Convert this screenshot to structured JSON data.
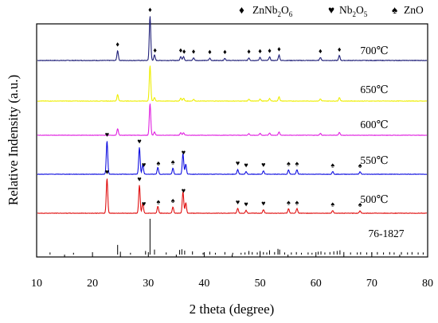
{
  "chart_data": {
    "type": "line",
    "xlabel": "2 theta (degree)",
    "ylabel": "Relative Indensity (a.u.)",
    "xlim": [
      10,
      80
    ],
    "x_ticks": [
      "10",
      "20",
      "30",
      "40",
      "50",
      "60",
      "70",
      "80"
    ],
    "grid": false,
    "legend_position": "top-right",
    "legend": [
      {
        "symbol": "♦",
        "label": "ZnNb2O6",
        "label_main": "ZnNb",
        "sub1": "2",
        "mid": "O",
        "sub2": "6"
      },
      {
        "symbol": "♥",
        "label": "Nb2O5",
        "label_main": "Nb",
        "sub1": "2",
        "mid": "O",
        "sub2": "5"
      },
      {
        "symbol": "♠",
        "label": "ZnO",
        "label_main": "ZnO",
        "sub1": "",
        "mid": "",
        "sub2": ""
      }
    ],
    "series": [
      {
        "name": "700℃",
        "color": "#1f1f78",
        "level": 0.4,
        "peaks": [
          {
            "x": 24.5,
            "h": 0.22
          },
          {
            "x": 30.3,
            "h": 1.0
          },
          {
            "x": 31.1,
            "h": 0.12
          },
          {
            "x": 35.8,
            "h": 0.09
          },
          {
            "x": 36.3,
            "h": 0.09
          },
          {
            "x": 38.1,
            "h": 0.06
          },
          {
            "x": 41.0,
            "h": 0.05
          },
          {
            "x": 43.7,
            "h": 0.05
          },
          {
            "x": 48.0,
            "h": 0.06
          },
          {
            "x": 50.0,
            "h": 0.07
          },
          {
            "x": 51.7,
            "h": 0.08
          },
          {
            "x": 53.4,
            "h": 0.12
          },
          {
            "x": 60.8,
            "h": 0.07
          },
          {
            "x": 64.2,
            "h": 0.11
          }
        ],
        "markers": [
          {
            "x": 24.5,
            "s": "♦"
          },
          {
            "x": 30.3,
            "s": "♦"
          },
          {
            "x": 31.2,
            "s": "♦"
          },
          {
            "x": 35.8,
            "s": "♦"
          },
          {
            "x": 36.4,
            "s": "♦"
          },
          {
            "x": 38.1,
            "s": "♦"
          },
          {
            "x": 41.0,
            "s": "♦"
          },
          {
            "x": 43.7,
            "s": "♦"
          },
          {
            "x": 48.0,
            "s": "♦"
          },
          {
            "x": 50.0,
            "s": "♦"
          },
          {
            "x": 51.7,
            "s": "♦"
          },
          {
            "x": 53.4,
            "s": "♦"
          },
          {
            "x": 60.8,
            "s": "♦"
          },
          {
            "x": 64.2,
            "s": "♦"
          }
        ]
      },
      {
        "name": "650℃",
        "color": "#eeee00",
        "level": 0.35,
        "peaks": [
          {
            "x": 24.5,
            "h": 0.18
          },
          {
            "x": 30.3,
            "h": 1.0
          },
          {
            "x": 31.1,
            "h": 0.1
          },
          {
            "x": 35.8,
            "h": 0.08
          },
          {
            "x": 36.3,
            "h": 0.08
          },
          {
            "x": 38.1,
            "h": 0.05
          },
          {
            "x": 48.0,
            "h": 0.05
          },
          {
            "x": 50.0,
            "h": 0.06
          },
          {
            "x": 51.7,
            "h": 0.07
          },
          {
            "x": 53.4,
            "h": 0.12
          },
          {
            "x": 60.8,
            "h": 0.06
          },
          {
            "x": 64.2,
            "h": 0.1
          }
        ],
        "markers": []
      },
      {
        "name": "600℃",
        "color": "#e020e0",
        "level": 0.35,
        "peaks": [
          {
            "x": 24.5,
            "h": 0.2
          },
          {
            "x": 30.3,
            "h": 1.0
          },
          {
            "x": 31.1,
            "h": 0.1
          },
          {
            "x": 35.8,
            "h": 0.08
          },
          {
            "x": 36.3,
            "h": 0.08
          },
          {
            "x": 48.0,
            "h": 0.05
          },
          {
            "x": 50.0,
            "h": 0.06
          },
          {
            "x": 51.7,
            "h": 0.07
          },
          {
            "x": 53.4,
            "h": 0.1
          },
          {
            "x": 60.8,
            "h": 0.06
          },
          {
            "x": 64.2,
            "h": 0.09
          }
        ],
        "markers": []
      },
      {
        "name": "550℃",
        "color": "#1010e0",
        "level": 0.37,
        "peaks": [
          {
            "x": 22.6,
            "h": 1.0
          },
          {
            "x": 28.4,
            "h": 0.8
          },
          {
            "x": 29.0,
            "h": 0.3
          },
          {
            "x": 31.7,
            "h": 0.2
          },
          {
            "x": 34.4,
            "h": 0.18
          },
          {
            "x": 36.2,
            "h": 0.62
          },
          {
            "x": 36.7,
            "h": 0.3
          },
          {
            "x": 46.0,
            "h": 0.14
          },
          {
            "x": 47.5,
            "h": 0.08
          },
          {
            "x": 50.6,
            "h": 0.1
          },
          {
            "x": 55.1,
            "h": 0.13
          },
          {
            "x": 56.6,
            "h": 0.13
          },
          {
            "x": 63.0,
            "h": 0.08
          },
          {
            "x": 67.9,
            "h": 0.07
          }
        ],
        "markers": [
          {
            "x": 22.6,
            "s": "♥"
          },
          {
            "x": 28.4,
            "s": "♥"
          },
          {
            "x": 29.2,
            "s": "♥"
          },
          {
            "x": 31.8,
            "s": "♠"
          },
          {
            "x": 34.4,
            "s": "♠"
          },
          {
            "x": 36.3,
            "s": "♥"
          },
          {
            "x": 46.0,
            "s": "♥"
          },
          {
            "x": 47.5,
            "s": "♥"
          },
          {
            "x": 50.6,
            "s": "♥"
          },
          {
            "x": 55.1,
            "s": "♠"
          },
          {
            "x": 56.6,
            "s": "♠"
          },
          {
            "x": 63.0,
            "s": "♠"
          },
          {
            "x": 67.9,
            "s": "♠"
          }
        ]
      },
      {
        "name": "500℃",
        "color": "#e01010",
        "level": 0.37,
        "peaks": [
          {
            "x": 22.6,
            "h": 1.0
          },
          {
            "x": 28.4,
            "h": 0.8
          },
          {
            "x": 29.0,
            "h": 0.3
          },
          {
            "x": 31.7,
            "h": 0.2
          },
          {
            "x": 34.4,
            "h": 0.18
          },
          {
            "x": 36.2,
            "h": 0.62
          },
          {
            "x": 36.7,
            "h": 0.3
          },
          {
            "x": 46.0,
            "h": 0.14
          },
          {
            "x": 47.5,
            "h": 0.08
          },
          {
            "x": 50.6,
            "h": 0.1
          },
          {
            "x": 55.1,
            "h": 0.13
          },
          {
            "x": 56.6,
            "h": 0.13
          },
          {
            "x": 63.0,
            "h": 0.08
          },
          {
            "x": 67.9,
            "h": 0.07
          }
        ],
        "markers": [
          {
            "x": 22.6,
            "s": "♥"
          },
          {
            "x": 28.4,
            "s": "♥"
          },
          {
            "x": 29.2,
            "s": "♥"
          },
          {
            "x": 31.8,
            "s": "♠"
          },
          {
            "x": 34.4,
            "s": "♠"
          },
          {
            "x": 36.3,
            "s": "♥"
          },
          {
            "x": 46.0,
            "s": "♥"
          },
          {
            "x": 47.5,
            "s": "♥"
          },
          {
            "x": 50.6,
            "s": "♥"
          },
          {
            "x": 55.1,
            "s": "♠"
          },
          {
            "x": 56.6,
            "s": "♠"
          },
          {
            "x": 63.0,
            "s": "♠"
          },
          {
            "x": 67.9,
            "s": "♠"
          }
        ]
      }
    ],
    "reference": {
      "name": "76-1827",
      "color": "#000000",
      "lines": [
        {
          "x": 12.4,
          "h": 0.06
        },
        {
          "x": 16.6,
          "h": 0.05
        },
        {
          "x": 24.5,
          "h": 0.27
        },
        {
          "x": 25.0,
          "h": 0.08
        },
        {
          "x": 26.8,
          "h": 0.05
        },
        {
          "x": 29.5,
          "h": 0.1
        },
        {
          "x": 30.3,
          "h": 1.0
        },
        {
          "x": 31.1,
          "h": 0.14
        },
        {
          "x": 33.2,
          "h": 0.06
        },
        {
          "x": 35.6,
          "h": 0.13
        },
        {
          "x": 36.0,
          "h": 0.15
        },
        {
          "x": 36.5,
          "h": 0.11
        },
        {
          "x": 37.9,
          "h": 0.09
        },
        {
          "x": 39.8,
          "h": 0.05
        },
        {
          "x": 41.0,
          "h": 0.08
        },
        {
          "x": 42.0,
          "h": 0.05
        },
        {
          "x": 43.7,
          "h": 0.07
        },
        {
          "x": 45.1,
          "h": 0.05
        },
        {
          "x": 46.6,
          "h": 0.05
        },
        {
          "x": 47.3,
          "h": 0.06
        },
        {
          "x": 48.0,
          "h": 0.1
        },
        {
          "x": 48.6,
          "h": 0.07
        },
        {
          "x": 49.5,
          "h": 0.06
        },
        {
          "x": 50.0,
          "h": 0.1
        },
        {
          "x": 50.6,
          "h": 0.07
        },
        {
          "x": 51.2,
          "h": 0.06
        },
        {
          "x": 51.7,
          "h": 0.12
        },
        {
          "x": 52.6,
          "h": 0.07
        },
        {
          "x": 53.2,
          "h": 0.16
        },
        {
          "x": 53.5,
          "h": 0.14
        },
        {
          "x": 54.4,
          "h": 0.06
        },
        {
          "x": 55.6,
          "h": 0.06
        },
        {
          "x": 56.5,
          "h": 0.07
        },
        {
          "x": 57.4,
          "h": 0.05
        },
        {
          "x": 58.6,
          "h": 0.06
        },
        {
          "x": 59.3,
          "h": 0.05
        },
        {
          "x": 60.4,
          "h": 0.08
        },
        {
          "x": 60.9,
          "h": 0.09
        },
        {
          "x": 61.6,
          "h": 0.06
        },
        {
          "x": 62.5,
          "h": 0.07
        },
        {
          "x": 63.2,
          "h": 0.09
        },
        {
          "x": 63.8,
          "h": 0.1
        },
        {
          "x": 64.3,
          "h": 0.12
        },
        {
          "x": 65.0,
          "h": 0.07
        },
        {
          "x": 66.2,
          "h": 0.06
        },
        {
          "x": 67.4,
          "h": 0.06
        },
        {
          "x": 68.0,
          "h": 0.07
        },
        {
          "x": 69.1,
          "h": 0.06
        },
        {
          "x": 70.0,
          "h": 0.06
        },
        {
          "x": 71.0,
          "h": 0.07
        },
        {
          "x": 72.1,
          "h": 0.06
        },
        {
          "x": 73.2,
          "h": 0.07
        },
        {
          "x": 74.0,
          "h": 0.06
        },
        {
          "x": 75.3,
          "h": 0.07
        },
        {
          "x": 76.4,
          "h": 0.06
        },
        {
          "x": 77.2,
          "h": 0.07
        },
        {
          "x": 78.3,
          "h": 0.06
        },
        {
          "x": 79.2,
          "h": 0.06
        }
      ]
    }
  }
}
